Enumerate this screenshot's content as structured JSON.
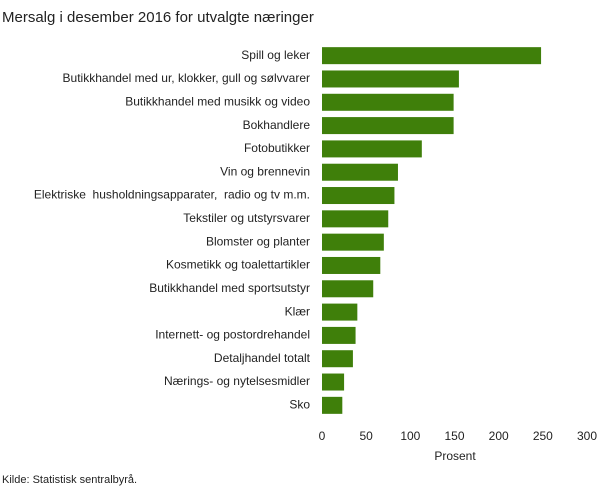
{
  "chart_data": {
    "type": "barh",
    "title": "Mersalg i desember 2016 for utvalgte næringer",
    "categories": [
      "Spill og leker",
      "Butikkhandel med ur, klokker, gull og sølvvarer",
      "Butikkhandel med musikk og video",
      "Bokhandlere",
      "Fotobutikker",
      "Vin og brennevin",
      "Elektriske  husholdningsapparater,  radio og tv m.m.",
      "Tekstiler og utstyrsvarer",
      "Blomster og planter",
      "Kosmetikk og toalettartikler",
      "Butikkhandel med sportsutstyr",
      "Klær",
      "Internett- og postordrehandel",
      "Detaljhandel totalt",
      "Nærings- og nytelsesmidler",
      "Sko"
    ],
    "values": [
      248,
      155,
      149,
      149,
      113,
      86,
      82,
      75,
      70,
      66,
      58,
      40,
      38,
      35,
      25,
      23
    ],
    "color": "#3f7f0a",
    "xlim": [
      0,
      300
    ],
    "xticks": [
      0,
      50,
      100,
      150,
      200,
      250,
      300
    ],
    "xlabel": "Prosent",
    "source": "Kilde: Statistisk sentralbyrå.",
    "grid": false
  }
}
